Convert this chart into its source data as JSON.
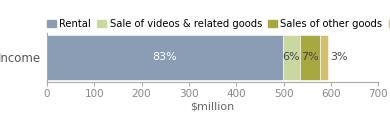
{
  "categories": [
    "Income"
  ],
  "segments": [
    {
      "label": "Rental",
      "value": 83,
      "color": "#8b9db5",
      "pct_label": "83%",
      "label_color": "white",
      "label_inside": true
    },
    {
      "label": "Sale of videos & related goods",
      "value": 6,
      "color": "#c8d8a0",
      "pct_label": "6%",
      "label_color": "#444444",
      "label_inside": true
    },
    {
      "label": "Sales of other goods",
      "value": 7,
      "color": "#a8a840",
      "pct_label": "7%",
      "label_color": "#444444",
      "label_inside": true
    },
    {
      "label": "Other income",
      "value": 3,
      "color": "#d4c068",
      "pct_label": "3%",
      "label_color": "#444444",
      "label_inside": false
    }
  ],
  "total_million": 600,
  "scale_max": 700,
  "xlabel": "$million",
  "xticks": [
    0,
    100,
    200,
    300,
    400,
    500,
    600,
    700
  ],
  "ylabel": "Income",
  "bar_height": 0.55,
  "bg_color": "#ffffff",
  "axes_color": "#aaaaaa",
  "tick_color": "#888888",
  "legend_fontsize": 7.2,
  "label_fontsize": 8.0,
  "tick_fontsize": 7.5,
  "ylabel_fontsize": 8.5,
  "xlabel_fontsize": 8.0
}
